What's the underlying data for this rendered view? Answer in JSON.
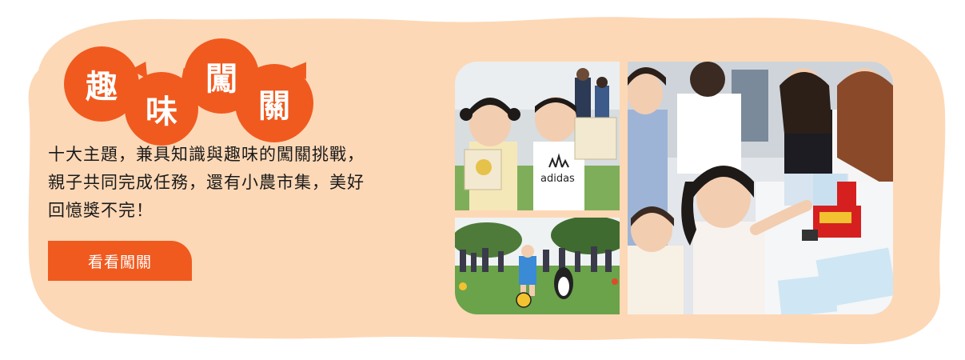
{
  "title": {
    "chars": [
      "趣",
      "味",
      "闖",
      "關"
    ]
  },
  "description": {
    "lines": [
      "十大主題，兼具知識與趣味的闖關挑戰，",
      "親子共同完成任務，還有小農市集，美好",
      "回憶獎不完！"
    ]
  },
  "cta": {
    "label": "看看闖關"
  },
  "photos": {
    "shirt_text": "adidas"
  },
  "colors": {
    "background_blob": "#fdd8b6",
    "accent": "#f05a1f",
    "text": "#1a1a1a"
  }
}
